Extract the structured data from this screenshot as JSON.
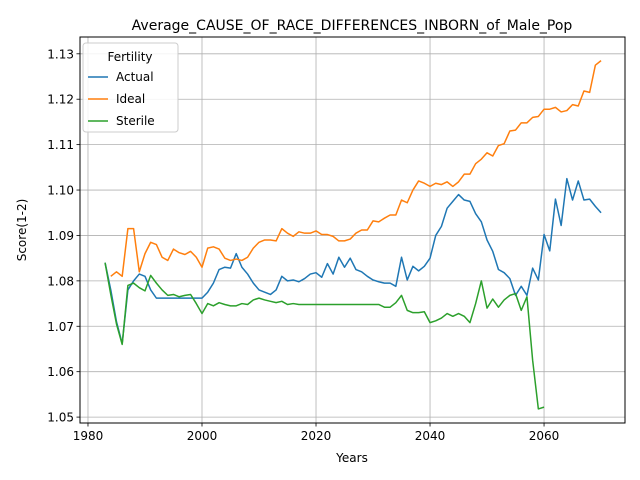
{
  "chart_data": {
    "type": "line",
    "title": "Average_CAUSE_OF_RACE_DIFFERENCES_INBORN_of_Male_Pop",
    "xlabel": "Years",
    "ylabel": "Score(1-2)",
    "xlim": [
      1978.6,
      2074.2
    ],
    "ylim": [
      1.0487,
      1.1337
    ],
    "xticks": [
      1980,
      2000,
      2020,
      2040,
      2060
    ],
    "yticks": [
      1.05,
      1.06,
      1.07,
      1.08,
      1.09,
      1.1,
      1.11,
      1.12,
      1.13
    ],
    "xtick_labels": [
      "1980",
      "2000",
      "2020",
      "2040",
      "2060"
    ],
    "ytick_labels": [
      "1.05",
      "1.06",
      "1.07",
      "1.08",
      "1.09",
      "1.10",
      "1.11",
      "1.12",
      "1.13"
    ],
    "grid": true,
    "legend": {
      "title": "Fertility",
      "position": "top-left"
    },
    "series": [
      {
        "name": "Actual",
        "color": "#1f77b4",
        "x": [
          1983,
          1984,
          1985,
          1986,
          1987,
          1988,
          1989,
          1990,
          1991,
          1992,
          1993,
          1994,
          1995,
          1996,
          1997,
          1998,
          1999,
          2000,
          2001,
          2002,
          2003,
          2004,
          2005,
          2006,
          2007,
          2008,
          2009,
          2010,
          2011,
          2012,
          2013,
          2014,
          2015,
          2016,
          2017,
          2018,
          2019,
          2020,
          2021,
          2022,
          2023,
          2024,
          2025,
          2026,
          2027,
          2028,
          2029,
          2030,
          2031,
          2032,
          2033,
          2034,
          2035,
          2036,
          2037,
          2038,
          2039,
          2040,
          2041,
          2042,
          2043,
          2044,
          2045,
          2046,
          2047,
          2048,
          2049,
          2050,
          2051,
          2052,
          2053,
          2054,
          2055,
          2056,
          2057,
          2058,
          2059,
          2060,
          2061,
          2062,
          2063,
          2064,
          2065,
          2066,
          2067,
          2068,
          2069,
          2070
        ],
        "values": [
          1.084,
          1.078,
          1.071,
          1.0662,
          1.078,
          1.08,
          1.0815,
          1.081,
          1.078,
          1.0762,
          1.0762,
          1.0762,
          1.0762,
          1.0762,
          1.0762,
          1.0762,
          1.0762,
          1.0762,
          1.0775,
          1.0795,
          1.0825,
          1.083,
          1.0828,
          1.086,
          1.083,
          1.0815,
          1.0795,
          1.078,
          1.0775,
          1.077,
          1.078,
          1.081,
          1.08,
          1.0802,
          1.0798,
          1.0805,
          1.0815,
          1.0818,
          1.0808,
          1.0838,
          1.0815,
          1.0852,
          1.083,
          1.085,
          1.0825,
          1.082,
          1.081,
          1.0802,
          1.0798,
          1.0795,
          1.0795,
          1.0788,
          1.0852,
          1.0802,
          1.0832,
          1.0822,
          1.0832,
          1.085,
          1.09,
          1.092,
          1.096,
          1.0975,
          1.099,
          1.0978,
          1.0975,
          1.0948,
          1.093,
          1.089,
          1.0865,
          1.0825,
          1.0818,
          1.0805,
          1.0768,
          1.0788,
          1.0768,
          1.0828,
          1.0802,
          1.0902,
          1.0866,
          1.098,
          1.0922,
          1.1025,
          1.0978,
          1.102,
          1.0978,
          1.098,
          1.0964,
          1.095
        ]
      },
      {
        "name": "Ideal",
        "color": "#ff7f0e",
        "x": [
          1984,
          1985,
          1986,
          1987,
          1988,
          1989,
          1990,
          1991,
          1992,
          1993,
          1994,
          1995,
          1996,
          1997,
          1998,
          1999,
          2000,
          2001,
          2002,
          2003,
          2004,
          2005,
          2006,
          2007,
          2008,
          2009,
          2010,
          2011,
          2012,
          2013,
          2014,
          2015,
          2016,
          2017,
          2018,
          2019,
          2020,
          2021,
          2022,
          2023,
          2024,
          2025,
          2026,
          2027,
          2028,
          2029,
          2030,
          2031,
          2032,
          2033,
          2034,
          2035,
          2036,
          2037,
          2038,
          2039,
          2040,
          2041,
          2042,
          2043,
          2044,
          2045,
          2046,
          2047,
          2048,
          2049,
          2050,
          2051,
          2052,
          2053,
          2054,
          2055,
          2056,
          2057,
          2058,
          2059,
          2060,
          2061,
          2062,
          2063,
          2064,
          2065,
          2066,
          2067,
          2068,
          2069,
          2070
        ],
        "values": [
          1.081,
          1.082,
          1.081,
          1.0915,
          1.0915,
          1.082,
          1.086,
          1.0885,
          1.088,
          1.0852,
          1.0845,
          1.087,
          1.0862,
          1.0858,
          1.0865,
          1.0852,
          1.083,
          1.0872,
          1.0875,
          1.087,
          1.085,
          1.0845,
          1.0848,
          1.0845,
          1.0852,
          1.0872,
          1.0885,
          1.089,
          1.089,
          1.0888,
          1.0915,
          1.0905,
          1.0898,
          1.0908,
          1.0905,
          1.0905,
          1.091,
          1.0902,
          1.0902,
          1.0898,
          1.0888,
          1.0888,
          1.0892,
          1.0905,
          1.0912,
          1.0912,
          1.0932,
          1.093,
          1.0938,
          1.0945,
          1.0945,
          1.0978,
          1.0972,
          1.1,
          1.102,
          1.1015,
          1.1008,
          1.1015,
          1.1012,
          1.1018,
          1.1008,
          1.1018,
          1.1035,
          1.1035,
          1.1058,
          1.1068,
          1.1082,
          1.1075,
          1.1098,
          1.1102,
          1.113,
          1.1132,
          1.1148,
          1.1148,
          1.116,
          1.1162,
          1.1178,
          1.1178,
          1.1182,
          1.1172,
          1.1175,
          1.1188,
          1.1185,
          1.1218,
          1.1215,
          1.1275,
          1.1285
        ]
      },
      {
        "name": "Sterile",
        "color": "#2ca02c",
        "x": [
          1983,
          1984,
          1985,
          1986,
          1987,
          1988,
          1989,
          1990,
          1991,
          1992,
          1993,
          1994,
          1995,
          1996,
          1997,
          1998,
          1999,
          2000,
          2001,
          2002,
          2003,
          2004,
          2005,
          2006,
          2007,
          2008,
          2009,
          2010,
          2011,
          2012,
          2013,
          2014,
          2015,
          2016,
          2017,
          2018,
          2019,
          2020,
          2021,
          2022,
          2023,
          2024,
          2025,
          2026,
          2027,
          2028,
          2029,
          2030,
          2031,
          2032,
          2033,
          2034,
          2035,
          2036,
          2037,
          2038,
          2039,
          2040,
          2041,
          2042,
          2043,
          2044,
          2045,
          2046,
          2047,
          2048,
          2049,
          2050,
          2051,
          2052,
          2053,
          2054,
          2055,
          2056,
          2057,
          2058,
          2059,
          2060
        ],
        "values": [
          1.084,
          1.077,
          1.0705,
          1.066,
          1.079,
          1.0795,
          1.0785,
          1.0778,
          1.0812,
          1.0795,
          1.078,
          1.0768,
          1.077,
          1.0765,
          1.0768,
          1.077,
          1.075,
          1.0728,
          1.075,
          1.0745,
          1.0752,
          1.0748,
          1.0745,
          1.0745,
          1.075,
          1.0748,
          1.0758,
          1.0762,
          1.0758,
          1.0755,
          1.0752,
          1.0755,
          1.0748,
          1.075,
          1.0748,
          1.0748,
          1.0748,
          1.0748,
          1.0748,
          1.0748,
          1.0748,
          1.0748,
          1.0748,
          1.0748,
          1.0748,
          1.0748,
          1.0748,
          1.0748,
          1.0748,
          1.0742,
          1.0742,
          1.0752,
          1.0768,
          1.0735,
          1.073,
          1.073,
          1.0732,
          1.0708,
          1.0712,
          1.0718,
          1.0728,
          1.0722,
          1.0728,
          1.0722,
          1.0708,
          1.075,
          1.08,
          1.074,
          1.076,
          1.0742,
          1.0758,
          1.0768,
          1.0772,
          1.0735,
          1.0765,
          1.0625,
          1.0518,
          1.0522
        ]
      }
    ]
  }
}
